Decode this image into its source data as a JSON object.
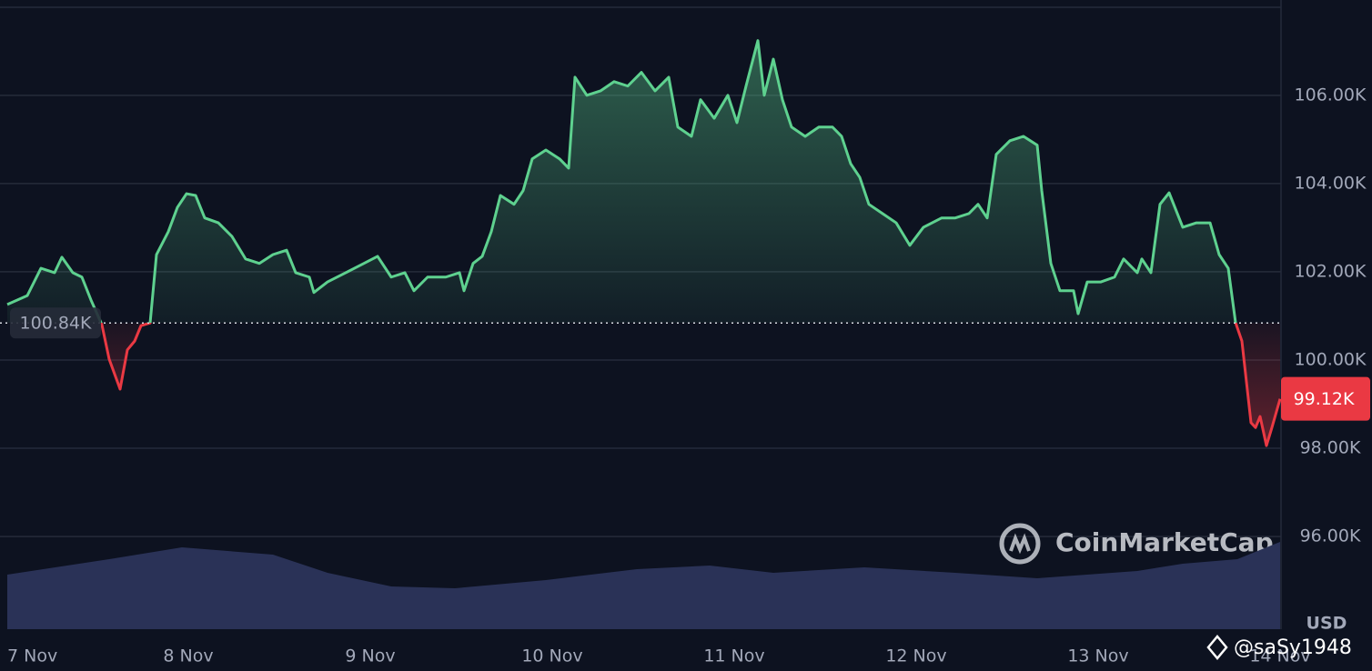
{
  "chart_data": {
    "type": "line",
    "currency": "USD",
    "watermark": "CoinMarketCap",
    "credit": "@saSy1948",
    "line_colors": {
      "above": "#5ed18f",
      "below": "#ea3943"
    },
    "baseline": {
      "value": 100.84,
      "label": "100.84K"
    },
    "current": {
      "value": 99.12,
      "label": "99.12K"
    },
    "xlim": [
      0,
      7
    ],
    "xticks": [
      {
        "value": 0,
        "label": "7 Nov"
      },
      {
        "value": 1,
        "label": "8 Nov"
      },
      {
        "value": 2,
        "label": "9 Nov"
      },
      {
        "value": 3,
        "label": "10 Nov"
      },
      {
        "value": 4,
        "label": "11 Nov"
      },
      {
        "value": 5,
        "label": "12 Nov"
      },
      {
        "value": 6,
        "label": "13 Nov"
      },
      {
        "value": 7,
        "label": "14 Nov"
      }
    ],
    "ylim": [
      93.9,
      108.16
    ],
    "yticks": [
      {
        "value": 96,
        "label": "96.00K"
      },
      {
        "value": 98,
        "label": "98.00K"
      },
      {
        "value": 100,
        "label": "100.00K"
      },
      {
        "value": 102,
        "label": "102.00K"
      },
      {
        "value": 104,
        "label": "104.00K"
      },
      {
        "value": 106,
        "label": "106.00K"
      }
    ],
    "grid": true,
    "x": [
      0.005,
      0.115,
      0.19,
      0.265,
      0.305,
      0.365,
      0.415,
      0.465,
      0.525,
      0.565,
      0.625,
      0.665,
      0.705,
      0.74,
      0.79,
      0.825,
      0.89,
      0.94,
      0.99,
      1.04,
      1.09,
      1.165,
      1.24,
      1.315,
      1.39,
      1.465,
      1.54,
      1.59,
      1.665,
      1.69,
      1.765,
      1.865,
      1.965,
      2.04,
      2.115,
      2.19,
      2.24,
      2.315,
      2.415,
      2.49,
      2.515,
      2.565,
      2.615,
      2.665,
      2.715,
      2.79,
      2.84,
      2.89,
      2.965,
      3.04,
      3.09,
      3.125,
      3.19,
      3.265,
      3.34,
      3.415,
      3.49,
      3.565,
      3.64,
      3.69,
      3.765,
      3.815,
      3.89,
      3.965,
      4.015,
      4.065,
      4.13,
      4.165,
      4.215,
      4.265,
      4.315,
      4.39,
      4.465,
      4.54,
      4.59,
      4.64,
      4.69,
      4.74,
      4.815,
      4.89,
      4.965,
      5.04,
      5.14,
      5.215,
      5.29,
      5.34,
      5.39,
      5.44,
      5.515,
      5.59,
      5.665,
      5.69,
      5.74,
      5.79,
      5.865,
      5.89,
      5.94,
      6.015,
      6.09,
      6.14,
      6.215,
      6.24,
      6.29,
      6.34,
      6.39,
      6.465,
      6.54,
      6.615,
      6.665,
      6.715,
      6.755,
      6.79,
      6.84,
      6.865,
      6.89,
      6.925,
      6.955,
      7
    ],
    "values": [
      101.26,
      101.46,
      102.08,
      101.98,
      102.33,
      101.98,
      101.88,
      101.36,
      100.8,
      100.02,
      99.34,
      100.23,
      100.43,
      100.78,
      100.84,
      102.39,
      102.91,
      103.46,
      103.77,
      103.73,
      103.22,
      103.11,
      102.8,
      102.29,
      102.19,
      102.39,
      102.49,
      101.98,
      101.88,
      101.53,
      101.77,
      101.98,
      102.19,
      102.35,
      101.88,
      101.98,
      101.57,
      101.88,
      101.88,
      101.98,
      101.57,
      102.19,
      102.35,
      102.91,
      103.73,
      103.53,
      103.84,
      104.56,
      104.76,
      104.56,
      104.35,
      106.41,
      106.0,
      106.1,
      106.31,
      106.21,
      106.52,
      106.1,
      106.41,
      105.28,
      105.07,
      105.9,
      105.48,
      106.0,
      105.38,
      106.21,
      107.24,
      106.0,
      106.82,
      105.9,
      105.28,
      105.07,
      105.28,
      105.28,
      105.07,
      104.45,
      104.14,
      103.53,
      103.32,
      103.11,
      102.6,
      103.01,
      103.22,
      103.22,
      103.32,
      103.53,
      103.22,
      104.66,
      104.97,
      105.07,
      104.87,
      103.84,
      102.19,
      101.57,
      101.57,
      101.05,
      101.77,
      101.77,
      101.88,
      102.29,
      101.98,
      102.29,
      101.98,
      103.53,
      103.79,
      103.01,
      103.11,
      103.11,
      102.39,
      102.08,
      100.85,
      100.43,
      98.58,
      98.47,
      98.72,
      98.06,
      98.47,
      99.12
    ],
    "volume": {
      "color": "#2a3257",
      "x": [
        0.005,
        0.565,
        0.965,
        1.465,
        1.765,
        2.115,
        2.465,
        2.965,
        3.465,
        3.865,
        4.215,
        4.715,
        5.215,
        5.665,
        6.215,
        6.465,
        6.765,
        7
      ],
      "values": [
        60,
        77,
        90,
        82,
        62,
        47,
        45,
        54,
        66,
        70,
        62,
        68,
        62,
        56,
        64,
        72,
        77,
        96
      ]
    }
  }
}
